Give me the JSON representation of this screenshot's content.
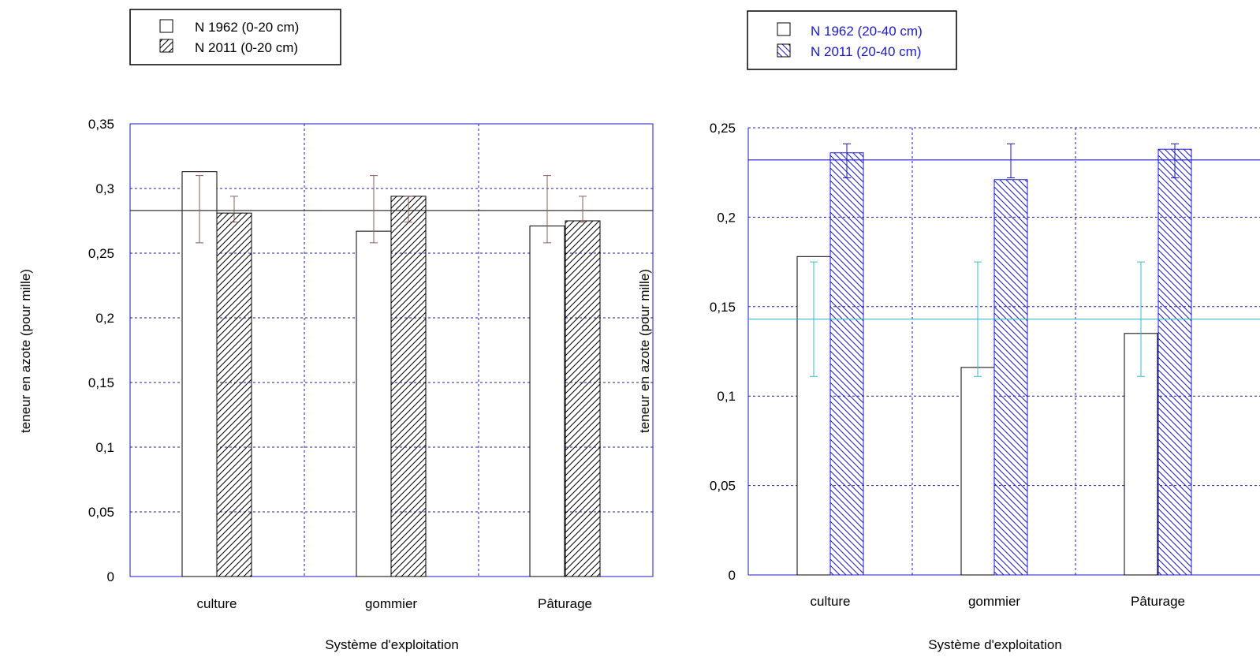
{
  "chart_data": [
    {
      "type": "bar",
      "categories": [
        "culture",
        "gommier",
        "Pâturage"
      ],
      "xlabel": "Système d'exploitation",
      "ylabel": "teneur en azote (pour mille)",
      "ylim": [
        0,
        0.35
      ],
      "yticks": [
        "0",
        "0,05",
        "0,1",
        "0,15",
        "0,2",
        "0,25",
        "0,3",
        "0,35"
      ],
      "grid": true,
      "legend_position": "top-left",
      "reference_line": 0.283,
      "series": [
        {
          "name": "N 1962 (0-20 cm)",
          "fill": "none",
          "values": [
            0.313,
            0.267,
            0.271
          ],
          "error_low": [
            0.258,
            0.258,
            0.258
          ],
          "error_high": [
            0.31,
            0.31,
            0.31
          ]
        },
        {
          "name": "N 2011 (0-20 cm)",
          "fill": "hatch",
          "values": [
            0.281,
            0.294,
            0.275
          ],
          "error_low": [
            0.274,
            0.274,
            0.274
          ],
          "error_high": [
            0.294,
            0.294,
            0.294
          ]
        }
      ],
      "colors": {
        "frame": "#1a1acc",
        "bars": "#000000",
        "error_1962": "#8b5e5e",
        "error_2011": "#8b5e5e",
        "reference": "#333333"
      }
    },
    {
      "type": "bar",
      "categories": [
        "culture",
        "gommier",
        "Pâturage"
      ],
      "xlabel": "Système d'exploitation",
      "ylabel": "teneur en azote (pour mille)",
      "ylim": [
        0,
        0.25
      ],
      "yticks": [
        "0",
        "0,05",
        "0,1",
        "0,15",
        "0,2",
        "0,25"
      ],
      "grid": true,
      "legend_position": "top-left",
      "reference_lines": [
        0.232,
        0.143
      ],
      "series": [
        {
          "name": "N 1962 (20-40 cm)",
          "fill": "none",
          "values": [
            0.178,
            0.116,
            0.135
          ],
          "error_low": [
            0.111,
            0.111,
            0.111
          ],
          "error_high": [
            0.175,
            0.175,
            0.175
          ]
        },
        {
          "name": "N 2011 (20-40 cm)",
          "fill": "hatch",
          "values": [
            0.236,
            0.221,
            0.238
          ],
          "error_low": [
            0.222,
            0.222,
            0.222
          ],
          "error_high": [
            0.241,
            0.241,
            0.241
          ]
        }
      ],
      "colors": {
        "frame": "#1a1acc",
        "bars_1962": "#000000",
        "bars_2011": "#1a1acc",
        "error_1962": "#33bbcc",
        "error_2011": "#1a1acc",
        "reference_2011": "#1a1acc",
        "reference_1962": "#33bbcc",
        "legend_text": "#1a1acc"
      }
    }
  ]
}
